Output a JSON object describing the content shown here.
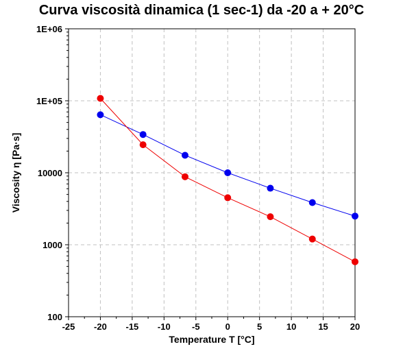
{
  "chart_data": {
    "type": "line",
    "title": "Curva viscosità dinamica (1 sec-1) da -20 a + 20°C",
    "xlabel": "Temperature  T [°C]",
    "ylabel": "Viscosity  η [Pa·s]",
    "xlim": [
      -25,
      20
    ],
    "ylim": [
      100,
      1000000
    ],
    "y_scale": "log",
    "grid": true,
    "x_ticks": [
      -25,
      -20,
      -15,
      -10,
      -5,
      0,
      5,
      10,
      15,
      20
    ],
    "x_tick_labels": [
      "-25",
      "-20",
      "-15",
      "-10",
      "-5",
      "0",
      "5",
      "10",
      "15",
      "20"
    ],
    "y_ticks": [
      100,
      1000,
      10000,
      100000,
      1000000
    ],
    "y_tick_labels": [
      "100",
      "1000",
      "10000",
      "1E+05",
      "1E+06"
    ],
    "series": [
      {
        "color": "#0000ee",
        "x": [
          -20,
          -13.3,
          -6.7,
          0,
          6.7,
          13.3,
          20
        ],
        "y": [
          64000,
          34000,
          17500,
          10000,
          6100,
          3850,
          2500
        ]
      },
      {
        "color": "#ee0000",
        "x": [
          -20,
          -13.3,
          -6.7,
          0,
          6.7,
          13.3,
          20
        ],
        "y": [
          108000,
          24500,
          8800,
          4500,
          2450,
          1200,
          580
        ]
      }
    ]
  }
}
